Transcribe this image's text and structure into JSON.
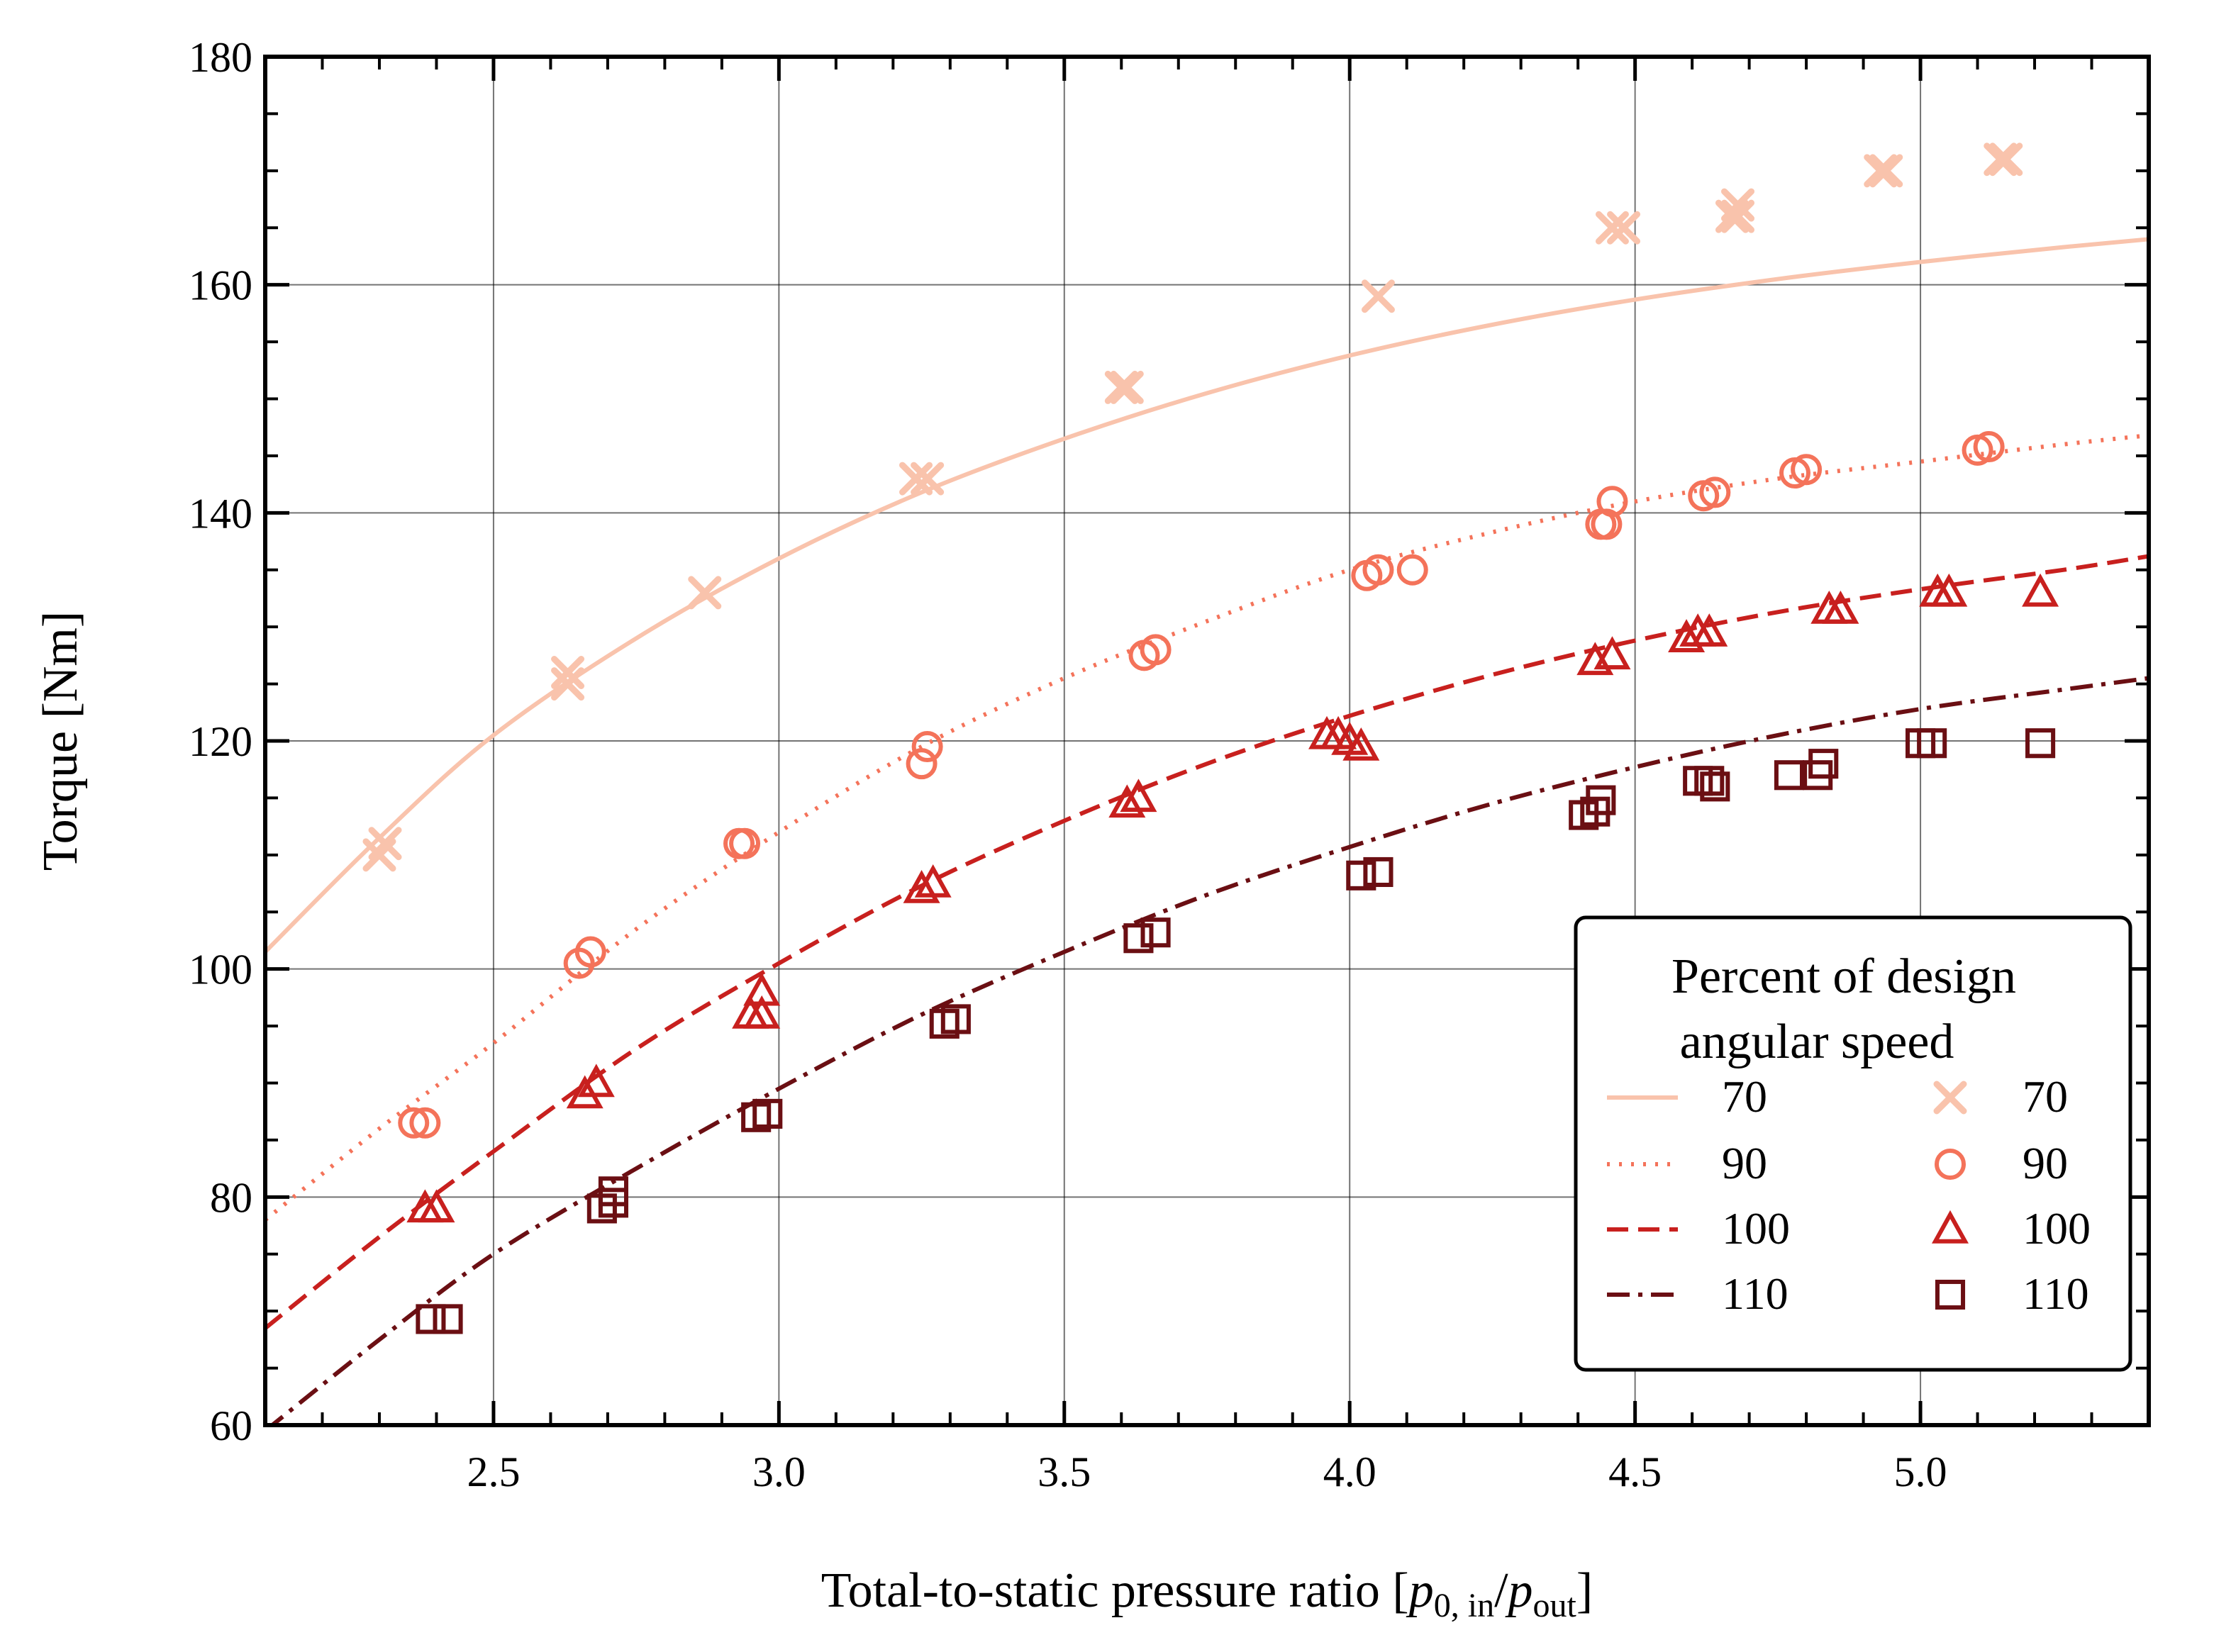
{
  "chart_data": {
    "type": "scatter",
    "xlabel": {
      "main": "Total-to-static pressure ratio [",
      "p1": "p",
      "p1_sub": "0, in",
      "slash": "/",
      "p2": "p",
      "p2_sub": "out",
      "close": "]"
    },
    "ylabel": "Torque [Nm]",
    "xlim": [
      2.1,
      5.4
    ],
    "ylim": [
      60,
      180
    ],
    "xticks": [
      2.5,
      3.0,
      3.5,
      4.0,
      4.5,
      5.0
    ],
    "xtick_labels": [
      "2.5",
      "3.0",
      "3.5",
      "4.0",
      "4.5",
      "5.0"
    ],
    "yticks": [
      60,
      80,
      100,
      120,
      140,
      160,
      180
    ],
    "ytick_labels": [
      "60",
      "80",
      "100",
      "120",
      "140",
      "160",
      "180"
    ],
    "grid": true,
    "legend": {
      "title_line1": "Percent of design",
      "title_line2": "angular speed",
      "placement": "lower-right",
      "columns": 2
    },
    "series": [
      {
        "name": "70",
        "color": "#f9c3ac",
        "line_style": "solid",
        "marker": "x",
        "fit_x": [
          2.1,
          2.3,
          2.5,
          2.75,
          3.0,
          3.25,
          3.5,
          3.75,
          4.0,
          4.25,
          4.5,
          4.75,
          5.0,
          5.25,
          5.4
        ],
        "fit_y": [
          101.5,
          111.5,
          120.5,
          129.0,
          136.0,
          141.8,
          146.5,
          150.5,
          153.8,
          156.5,
          158.7,
          160.5,
          162.0,
          163.3,
          164.0
        ],
        "points": [
          [
            2.3,
            110
          ],
          [
            2.31,
            111
          ],
          [
            2.63,
            125
          ],
          [
            2.63,
            126
          ],
          [
            2.87,
            133
          ],
          [
            3.24,
            143
          ],
          [
            3.26,
            143
          ],
          [
            3.6,
            151
          ],
          [
            3.61,
            151
          ],
          [
            4.05,
            159
          ],
          [
            4.46,
            165
          ],
          [
            4.48,
            165
          ],
          [
            4.67,
            166
          ],
          [
            4.68,
            167
          ],
          [
            4.68,
            166
          ],
          [
            4.93,
            170
          ],
          [
            4.94,
            170
          ],
          [
            5.14,
            171
          ],
          [
            5.15,
            171
          ]
        ]
      },
      {
        "name": "90",
        "color": "#f4735a",
        "line_style": "dotted",
        "marker": "o",
        "fit_x": [
          2.1,
          2.3,
          2.5,
          2.75,
          3.0,
          3.25,
          3.5,
          3.75,
          4.0,
          4.25,
          4.5,
          4.75,
          5.0,
          5.25,
          5.4
        ],
        "fit_y": [
          78.0,
          86.0,
          93.5,
          103.5,
          112.0,
          119.5,
          125.5,
          130.5,
          135.0,
          138.3,
          141.0,
          143.0,
          144.5,
          146.0,
          146.8
        ],
        "points": [
          [
            2.36,
            86.5
          ],
          [
            2.38,
            86.5
          ],
          [
            2.65,
            100.5
          ],
          [
            2.67,
            101.5
          ],
          [
            2.93,
            111
          ],
          [
            2.94,
            111
          ],
          [
            3.25,
            118
          ],
          [
            3.26,
            119.5
          ],
          [
            3.64,
            127.5
          ],
          [
            3.66,
            128
          ],
          [
            4.03,
            134.5
          ],
          [
            4.05,
            135
          ],
          [
            4.11,
            135
          ],
          [
            4.44,
            139
          ],
          [
            4.45,
            139
          ],
          [
            4.46,
            141
          ],
          [
            4.62,
            141.5
          ],
          [
            4.64,
            141.8
          ],
          [
            4.78,
            143.5
          ],
          [
            4.8,
            143.8
          ],
          [
            5.1,
            145.5
          ],
          [
            5.12,
            145.8
          ]
        ]
      },
      {
        "name": "100",
        "color": "#c8201e",
        "line_style": "dashed",
        "marker": "^",
        "fit_x": [
          2.1,
          2.3,
          2.5,
          2.75,
          3.0,
          3.25,
          3.5,
          3.75,
          4.0,
          4.25,
          4.5,
          4.75,
          5.0,
          5.25,
          5.4
        ],
        "fit_y": [
          68.5,
          76.5,
          84.0,
          93.0,
          100.5,
          107.3,
          113.0,
          118.0,
          122.2,
          125.8,
          128.8,
          131.3,
          133.3,
          135.0,
          136.2
        ],
        "points": [
          [
            2.38,
            79
          ],
          [
            2.4,
            79
          ],
          [
            2.66,
            89
          ],
          [
            2.68,
            90
          ],
          [
            2.95,
            96
          ],
          [
            2.97,
            96
          ],
          [
            2.97,
            98
          ],
          [
            3.25,
            107
          ],
          [
            3.27,
            107.5
          ],
          [
            3.61,
            114.5
          ],
          [
            3.63,
            115
          ],
          [
            3.96,
            120.5
          ],
          [
            3.98,
            120.5
          ],
          [
            4.0,
            120
          ],
          [
            4.02,
            119.5
          ],
          [
            4.43,
            127
          ],
          [
            4.46,
            127.5
          ],
          [
            4.59,
            129
          ],
          [
            4.61,
            129.5
          ],
          [
            4.63,
            129.5
          ],
          [
            4.84,
            131.5
          ],
          [
            4.86,
            131.5
          ],
          [
            5.03,
            133
          ],
          [
            5.05,
            133
          ],
          [
            5.21,
            133
          ]
        ]
      },
      {
        "name": "110",
        "color": "#6b0f13",
        "line_style": "dashdot",
        "marker": "s",
        "fit_x": [
          2.1,
          2.3,
          2.5,
          2.75,
          3.0,
          3.25,
          3.5,
          3.75,
          4.0,
          4.25,
          4.5,
          4.75,
          5.0,
          5.25,
          5.4
        ],
        "fit_y": [
          59.5,
          67.5,
          75.0,
          82.5,
          89.5,
          96.0,
          101.5,
          106.5,
          110.7,
          114.5,
          117.7,
          120.5,
          122.8,
          124.5,
          125.5
        ],
        "points": [
          [
            2.39,
            69.3
          ],
          [
            2.42,
            69.3
          ],
          [
            2.69,
            79
          ],
          [
            2.71,
            79.5
          ],
          [
            2.71,
            80.5
          ],
          [
            2.96,
            87
          ],
          [
            2.98,
            87.3
          ],
          [
            3.29,
            95.2
          ],
          [
            3.31,
            95.6
          ],
          [
            3.63,
            102.7
          ],
          [
            3.66,
            103.2
          ],
          [
            4.02,
            108.2
          ],
          [
            4.05,
            108.5
          ],
          [
            4.41,
            113.5
          ],
          [
            4.43,
            113.8
          ],
          [
            4.44,
            114.8
          ],
          [
            4.61,
            116.5
          ],
          [
            4.63,
            116.5
          ],
          [
            4.64,
            116
          ],
          [
            4.77,
            117
          ],
          [
            4.82,
            117
          ],
          [
            4.83,
            118
          ],
          [
            5.0,
            119.8
          ],
          [
            5.02,
            119.8
          ],
          [
            5.21,
            119.8
          ]
        ]
      }
    ]
  }
}
